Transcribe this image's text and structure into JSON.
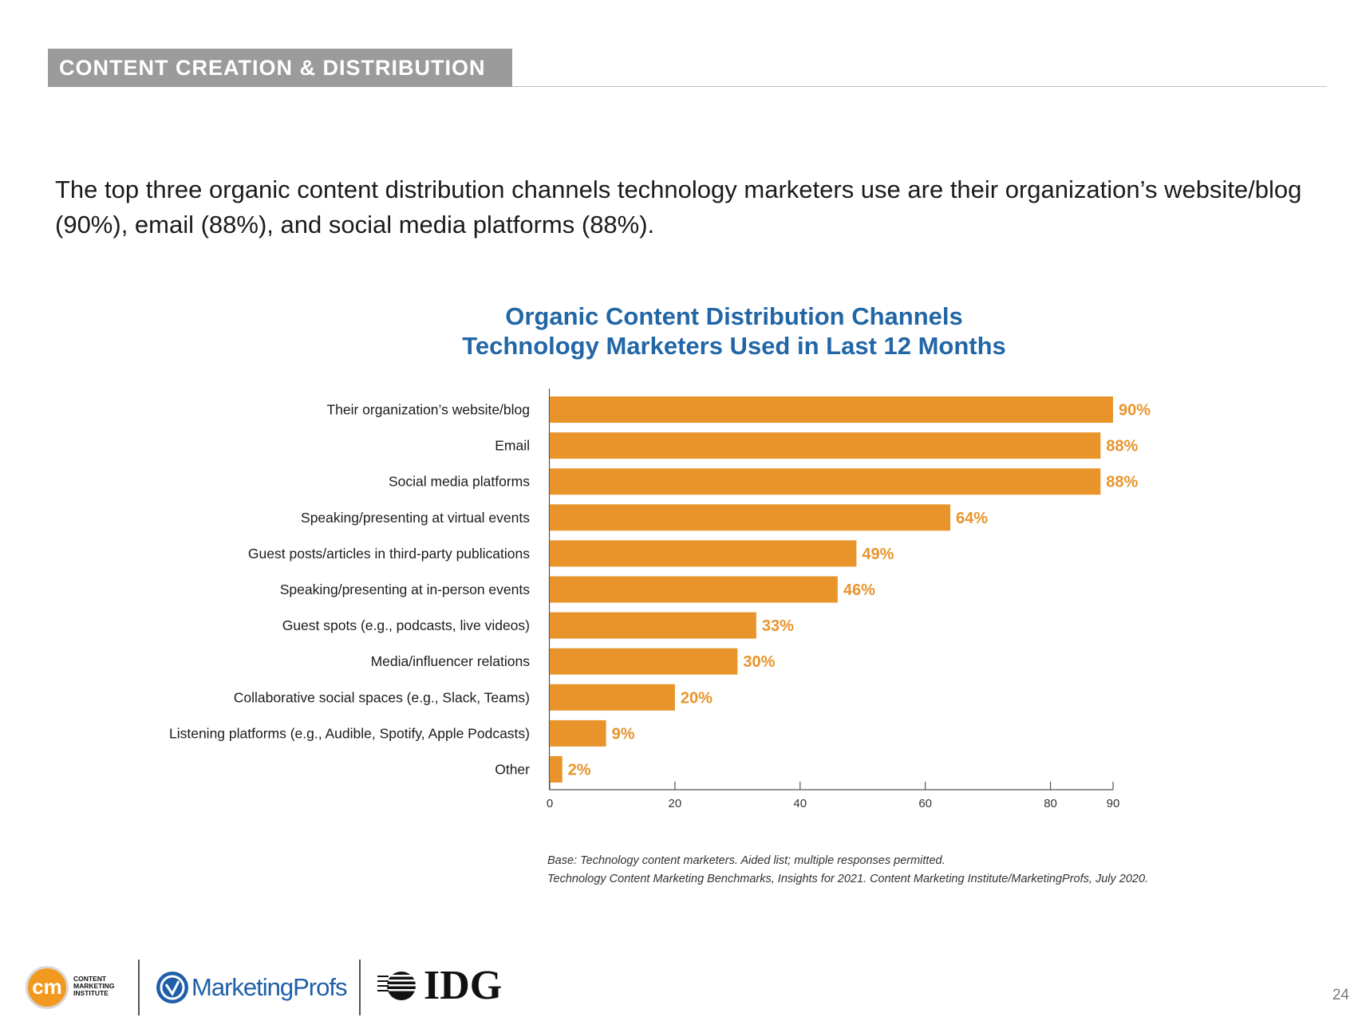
{
  "header": {
    "section_title": "CONTENT CREATION & DISTRIBUTION"
  },
  "intro_text": "The top three organic content distribution channels technology marketers use are their organization’s website/blog (90%), email (88%), and social media platforms (88%).",
  "chart_data": {
    "type": "bar",
    "orientation": "horizontal",
    "title_line1": "Organic Content Distribution Channels",
    "title_line2": "Technology Marketers Used in Last 12 Months",
    "categories": [
      "Their organization’s website/blog",
      "Email",
      "Social media platforms",
      "Speaking/presenting at virtual events",
      "Guest posts/articles in third-party publications",
      "Speaking/presenting at in-person events",
      "Guest spots (e.g., podcasts, live videos)",
      "Media/influencer relations",
      "Collaborative social spaces (e.g., Slack, Teams)",
      "Listening platforms (e.g., Audible, Spotify, Apple Podcasts)",
      "Other"
    ],
    "values": [
      90,
      88,
      88,
      64,
      49,
      46,
      33,
      30,
      20,
      9,
      2
    ],
    "value_labels": [
      "90%",
      "88%",
      "88%",
      "64%",
      "49%",
      "46%",
      "33%",
      "30%",
      "20%",
      "9%",
      "2%"
    ],
    "xlim": [
      0,
      90
    ],
    "xticks": [
      0,
      20,
      40,
      60,
      80,
      90
    ],
    "xtick_labels": [
      "0",
      "20",
      "40",
      "60",
      "80",
      "90"
    ],
    "bar_color": "#e8942a",
    "label_color": "#e8942a",
    "grid": false
  },
  "notes": {
    "base": "Base: Technology content marketers. Aided list; multiple responses permitted.",
    "source": "Technology Content Marketing Benchmarks, Insights for 2021. Content Marketing Institute/MarketingProfs, July 2020."
  },
  "footer": {
    "cmi_mark": "cm",
    "cmi_line1": "CONTENT",
    "cmi_line2": "MARKETING",
    "cmi_line3": "INSTITUTE",
    "mp_name": "MarketingProfs",
    "idg_name": "IDG",
    "page_number": "24"
  }
}
